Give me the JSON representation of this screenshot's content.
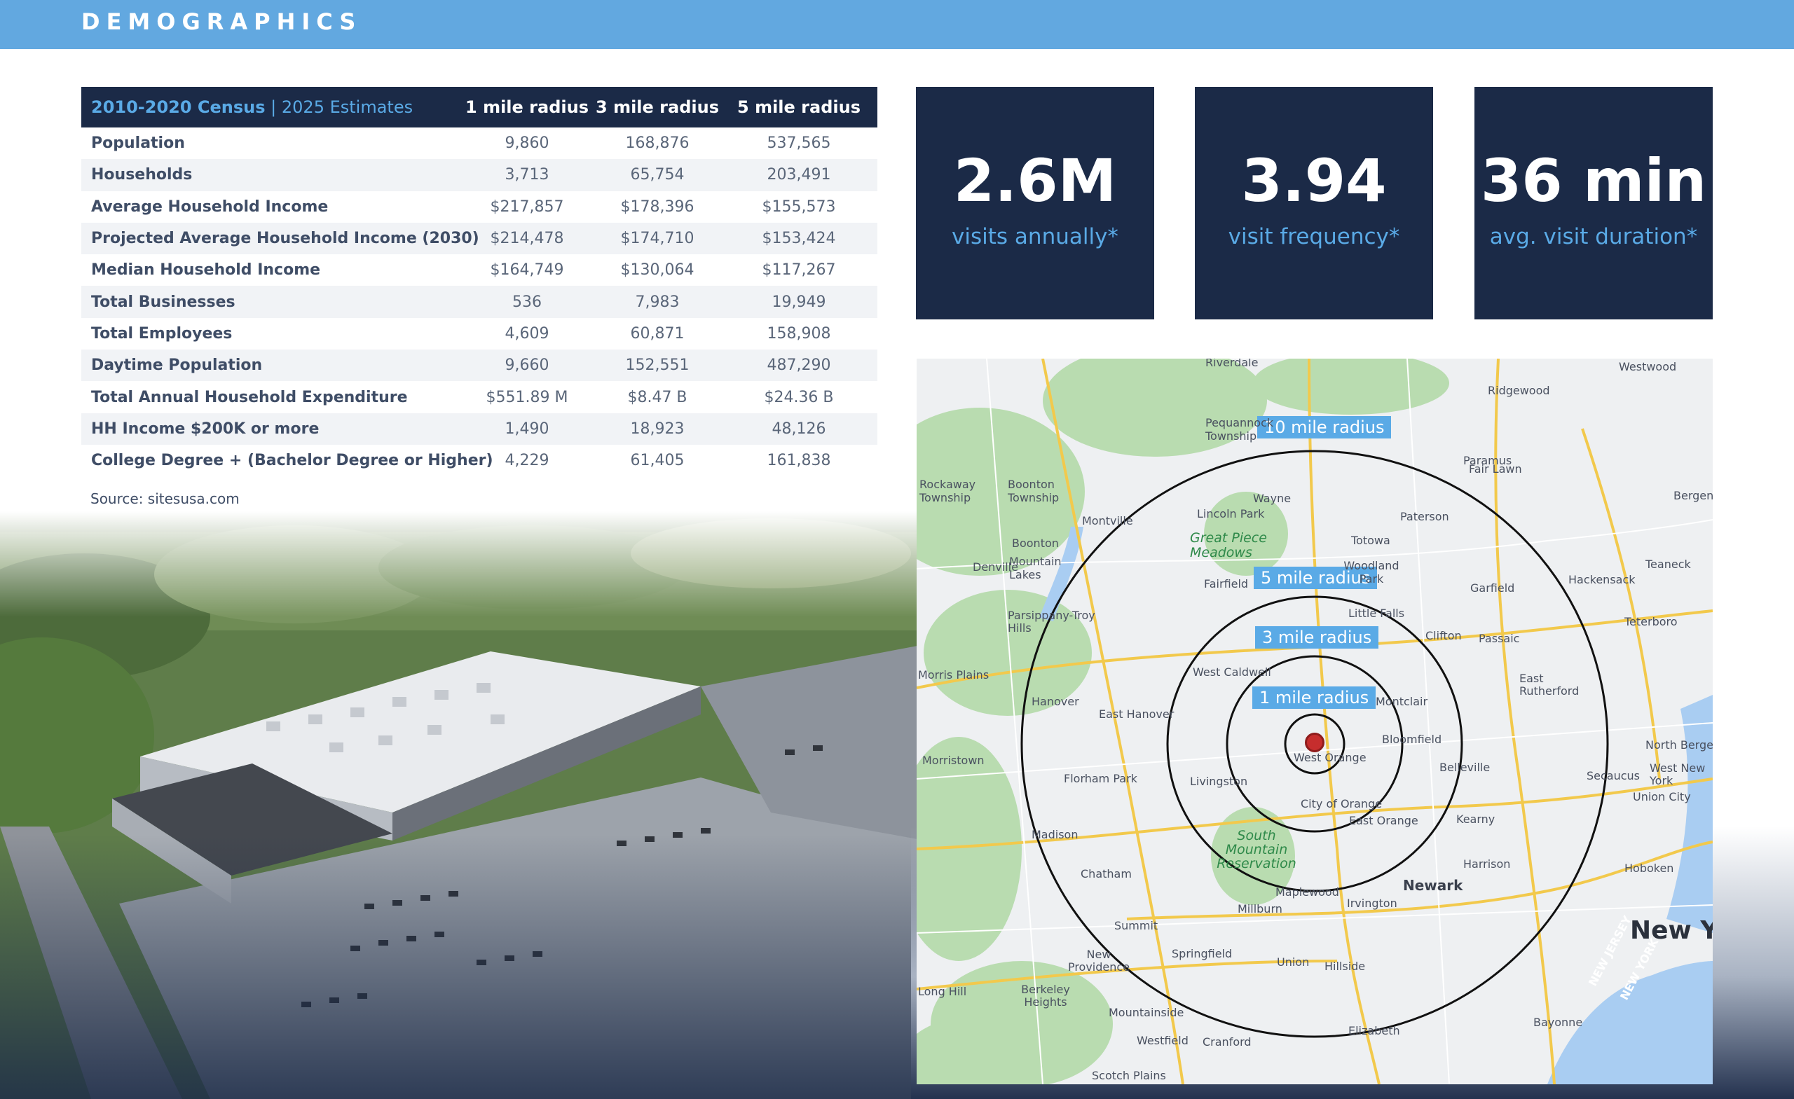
{
  "header": {
    "title": "DEMOGRAPHICS"
  },
  "table": {
    "header_census": "2010-2020 Census",
    "header_sep": " | ",
    "header_estimates": "2025 Estimates",
    "columns": [
      "1 mile radius",
      "3 mile radius",
      "5 mile radius"
    ],
    "rows": [
      {
        "label": "Population",
        "values": [
          "9,860",
          "168,876",
          "537,565"
        ]
      },
      {
        "label": "Households",
        "values": [
          "3,713",
          "65,754",
          "203,491"
        ]
      },
      {
        "label": "Average Household Income",
        "values": [
          "$217,857",
          "$178,396",
          "$155,573"
        ]
      },
      {
        "label": "Projected Average Household Income (2030)",
        "values": [
          "$214,478",
          "$174,710",
          "$153,424"
        ]
      },
      {
        "label": "Median Household Income",
        "values": [
          "$164,749",
          "$130,064",
          "$117,267"
        ]
      },
      {
        "label": "Total Businesses",
        "values": [
          "536",
          "7,983",
          "19,949"
        ]
      },
      {
        "label": "Total Employees",
        "values": [
          "4,609",
          "60,871",
          "158,908"
        ]
      },
      {
        "label": "Daytime Population",
        "values": [
          "9,660",
          "152,551",
          "487,290"
        ]
      },
      {
        "label": "Total Annual Household Expenditure",
        "values": [
          "$551.89 M",
          "$8.47 B",
          "$24.36 B"
        ]
      },
      {
        "label": "HH Income $200K or more",
        "values": [
          "1,490",
          "18,923",
          "48,126"
        ]
      },
      {
        "label": "College Degree + (Bachelor Degree or Higher)",
        "values": [
          "4,229",
          "61,405",
          "161,838"
        ]
      }
    ],
    "source": "Source: sitesusa.com"
  },
  "stats": [
    {
      "value": "2.6M",
      "label": "visits annually*"
    },
    {
      "value": "3.94",
      "label": "visit frequency*"
    },
    {
      "value": "36 min",
      "label": "avg. visit duration*"
    }
  ],
  "map": {
    "radius_tags": [
      "10 mile radius",
      "5 mile radius",
      "3 mile radius",
      "1 mile radius"
    ],
    "places": [
      "Riverdale",
      "Westwood",
      "Ridgewood",
      "Paramus",
      "Pequannock Township",
      "Fair Lawn",
      "Rockaway Township",
      "Boonton Township",
      "Wayne",
      "Bergenfield",
      "Montville",
      "Lincoln Park",
      "Paterson",
      "Boonton",
      "Totowa",
      "Great Piece Meadows",
      "Teaneck",
      "Denville",
      "Mountain Lakes",
      "Woodland Park",
      "Hackensack",
      "Fairfield",
      "Garfield",
      "Parsippany-Troy Hills",
      "Little Falls",
      "Teterboro",
      "Clifton",
      "Passaic",
      "Morris Plains",
      "West Caldwell",
      "East Rutherford",
      "Hanover",
      "East Hanover",
      "Montclair",
      "Bloomfield",
      "North Bergen",
      "Morristown",
      "West Orange",
      "Belleville",
      "Secaucus",
      "Florham Park",
      "Livingston",
      "West New York",
      "Union City",
      "City of Orange",
      "East Orange",
      "Kearny",
      "Madison",
      "South Mountain Reservation",
      "Chatham",
      "Harrison",
      "Hoboken",
      "Newark",
      "Maplewood",
      "Irvington",
      "Millburn",
      "Summit",
      "New York",
      "New Providence",
      "Springfield",
      "Union",
      "Hillside",
      "Long Hill",
      "Berkeley Heights",
      "Mountainside",
      "Elizabeth",
      "Bayonne",
      "Westfield",
      "Cranford",
      "Scotch Plains",
      "NEW JERSEY",
      "NEW YORK"
    ]
  },
  "colors": {
    "navy": "#1b2a47",
    "accent_blue": "#5aaae6",
    "header_blue": "#62a8e0"
  }
}
